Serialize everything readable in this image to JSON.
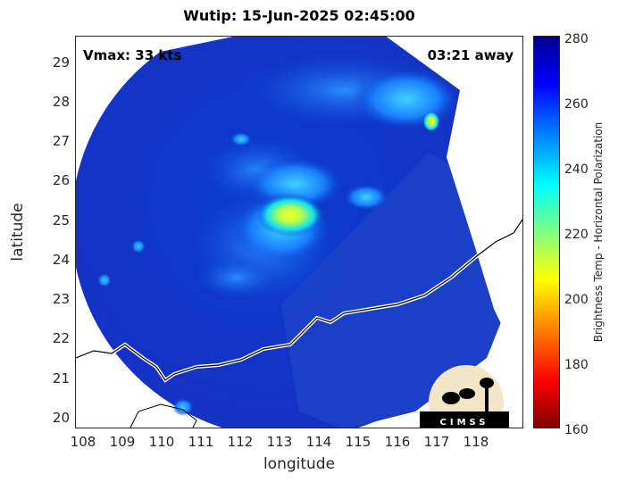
{
  "title": "Wutip: 15-Jun-2025 02:45:00",
  "vmax": "Vmax: 33 kts",
  "away": "03:21 away",
  "xlabel": "longitude",
  "ylabel": "latitude",
  "colorbar_label": "Brightness Temp - Horizontal Polarization",
  "logo_text": "CIMSS",
  "x_ticks": [
    "108",
    "109",
    "110",
    "111",
    "112",
    "113",
    "114",
    "115",
    "116",
    "117",
    "118"
  ],
  "y_ticks": [
    "29",
    "28",
    "27",
    "26",
    "25",
    "24",
    "23",
    "22",
    "21",
    "20"
  ],
  "colorbar_ticks": [
    "280",
    "260",
    "240",
    "220",
    "200",
    "180",
    "160"
  ],
  "map_data": {
    "lon_range": [
      107.9,
      118.9
    ],
    "lat_range": [
      19.75,
      29.7
    ],
    "storm_center": [
      113.0,
      25.0
    ],
    "colorscale": "jet",
    "value_range": [
      160,
      280
    ]
  }
}
